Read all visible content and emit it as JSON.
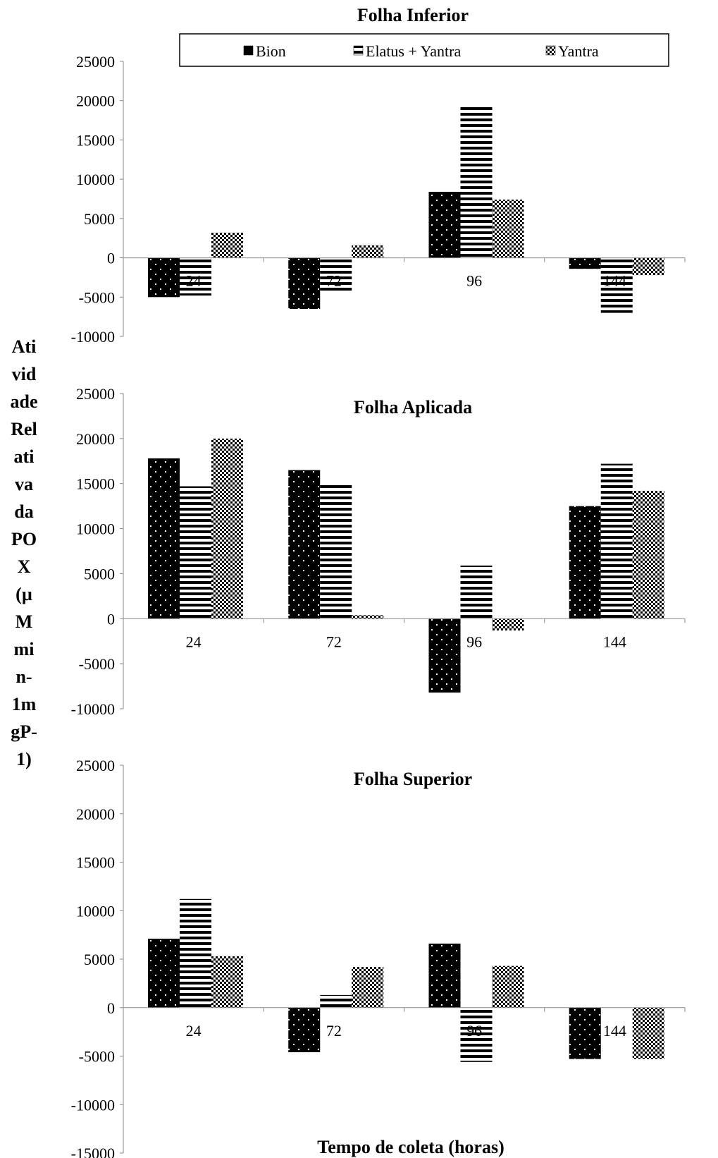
{
  "chart_data": {
    "type": "bar",
    "ylabel": "Atividade Relativa da POX (µM min-1mgP-1)",
    "ylabel_lines": [
      "Ati",
      "vid",
      "ade",
      "Rel",
      "ati",
      "va",
      "da",
      "PO",
      "X",
      "(µ",
      "M",
      "mi",
      "n-",
      "1m",
      "gP-",
      "1)"
    ],
    "xlabel": "Tempo de coleta (horas)",
    "categories": [
      "24",
      "72",
      "96",
      "144"
    ],
    "legend": {
      "placement": "top",
      "series_names": [
        "Bion",
        "Elatus + Yantra",
        "Yantra"
      ]
    },
    "panels": [
      {
        "title": "Folha Inferior",
        "ylim": [
          -10000,
          25000
        ],
        "ticks": [
          25000,
          20000,
          15000,
          10000,
          5000,
          0,
          -5000,
          -10000
        ],
        "series": [
          {
            "name": "Bion",
            "pattern": "dots",
            "values": [
              -5000,
              -6500,
              8400,
              -1400
            ]
          },
          {
            "name": "Elatus + Yantra",
            "pattern": "stripes",
            "values": [
              -4800,
              -4300,
              19200,
              -7000
            ]
          },
          {
            "name": "Yantra",
            "pattern": "checker",
            "values": [
              3200,
              1600,
              7400,
              -2200
            ]
          }
        ]
      },
      {
        "title": "Folha Aplicada",
        "ylim": [
          -10000,
          25000
        ],
        "ticks": [
          25000,
          20000,
          15000,
          10000,
          5000,
          0,
          -5000,
          -10000
        ],
        "series": [
          {
            "name": "Bion",
            "pattern": "dots",
            "values": [
              17800,
              16500,
              -8200,
              12500
            ]
          },
          {
            "name": "Elatus + Yantra",
            "pattern": "stripes",
            "values": [
              14700,
              15000,
              5900,
              17200
            ]
          },
          {
            "name": "Yantra",
            "pattern": "checker",
            "values": [
              20000,
              400,
              -1300,
              14200
            ]
          }
        ]
      },
      {
        "title": "Folha Superior",
        "ylim": [
          -15000,
          25000
        ],
        "ticks": [
          25000,
          20000,
          15000,
          10000,
          5000,
          0,
          -5000,
          -10000,
          -15000
        ],
        "series": [
          {
            "name": "Bion",
            "pattern": "dots",
            "values": [
              7100,
              -4600,
              6600,
              -5300
            ]
          },
          {
            "name": "Elatus + Yantra",
            "pattern": "stripes",
            "values": [
              11200,
              1300,
              -5600,
              0
            ]
          },
          {
            "name": "Yantra",
            "pattern": "checker",
            "values": [
              5300,
              4200,
              4300,
              -5300
            ]
          }
        ]
      }
    ]
  }
}
